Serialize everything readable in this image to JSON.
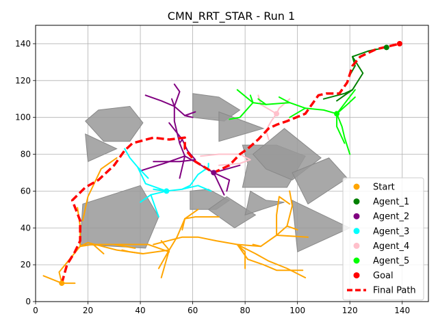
{
  "chart_data": {
    "type": "line",
    "title": "CMN_RRT_STAR - Run 1",
    "xlabel": "",
    "ylabel": "",
    "xlim": [
      0,
      150
    ],
    "ylim": [
      0,
      150
    ],
    "grid": true,
    "xticks": [
      0,
      20,
      40,
      60,
      80,
      100,
      120,
      140
    ],
    "yticks": [
      0,
      20,
      40,
      60,
      80,
      100,
      120,
      140
    ],
    "legend": {
      "placement": "bottom-right",
      "entries": [
        {
          "label": "Start",
          "color": "#ffa500",
          "marker": "dot"
        },
        {
          "label": "Agent_1",
          "color": "#008000",
          "marker": "dot"
        },
        {
          "label": "Agent_2",
          "color": "#800080",
          "marker": "dot"
        },
        {
          "label": "Agent_3",
          "color": "#00ffff",
          "marker": "dot"
        },
        {
          "label": "Agent_4",
          "color": "#ffc0cb",
          "marker": "dot"
        },
        {
          "label": "Agent_5",
          "color": "#00ff00",
          "marker": "dot"
        },
        {
          "label": "Goal",
          "color": "#ff0000",
          "marker": "dot"
        },
        {
          "label": "Final Path",
          "color": "#ff0000",
          "marker": "dash"
        }
      ]
    },
    "obstacle_color": "#999999",
    "obstacles": [
      [
        [
          19,
          98
        ],
        [
          24,
          104
        ],
        [
          36,
          106
        ],
        [
          41,
          97
        ],
        [
          36,
          87
        ],
        [
          26,
          87
        ]
      ],
      [
        [
          19,
          91
        ],
        [
          31,
          83
        ],
        [
          20,
          76
        ]
      ],
      [
        [
          60,
          113
        ],
        [
          70,
          111
        ],
        [
          78,
          104
        ],
        [
          72,
          98
        ],
        [
          60,
          100
        ]
      ],
      [
        [
          70,
          103
        ],
        [
          87,
          94
        ],
        [
          70,
          87
        ]
      ],
      [
        [
          18,
          53
        ],
        [
          40,
          63
        ],
        [
          47,
          46
        ],
        [
          42,
          29
        ],
        [
          17,
          31
        ]
      ],
      [
        [
          59,
          60
        ],
        [
          66,
          61
        ],
        [
          74,
          55
        ],
        [
          69,
          50
        ],
        [
          59,
          50
        ]
      ],
      [
        [
          66,
          50
        ],
        [
          76,
          40
        ],
        [
          84,
          47
        ],
        [
          73,
          57
        ]
      ],
      [
        [
          82,
          60
        ],
        [
          88,
          55
        ],
        [
          95,
          54
        ],
        [
          80,
          47
        ],
        [
          81,
          53
        ]
      ],
      [
        [
          79,
          85
        ],
        [
          81,
          75
        ],
        [
          79,
          62
        ],
        [
          96,
          62
        ],
        [
          103,
          79
        ],
        [
          92,
          85
        ]
      ],
      [
        [
          83,
          80
        ],
        [
          95,
          94
        ],
        [
          109,
          78
        ],
        [
          98,
          66
        ],
        [
          88,
          72
        ]
      ],
      [
        [
          98,
          70
        ],
        [
          112,
          78
        ],
        [
          119,
          67
        ],
        [
          104,
          53
        ]
      ],
      [
        [
          98,
          55
        ],
        [
          120,
          40
        ],
        [
          100,
          27
        ]
      ]
    ],
    "tree_color": "#ffa500",
    "tree_segments": [
      [
        [
          10,
          10
        ],
        [
          9,
          16
        ],
        [
          13,
          23
        ],
        [
          17,
          30
        ],
        [
          22,
          31
        ],
        [
          30,
          31
        ],
        [
          43,
          31
        ],
        [
          51,
          27
        ]
      ],
      [
        [
          10,
          10
        ],
        [
          3,
          14
        ]
      ],
      [
        [
          10,
          10
        ],
        [
          15,
          10
        ]
      ],
      [
        [
          13,
          23
        ],
        [
          12,
          21
        ]
      ],
      [
        [
          17,
          30
        ],
        [
          17,
          41
        ],
        [
          16,
          51
        ]
      ],
      [
        [
          17,
          30
        ],
        [
          20,
          32
        ],
        [
          31,
          28
        ],
        [
          41,
          26
        ],
        [
          51,
          28
        ],
        [
          48,
          33
        ]
      ],
      [
        [
          22,
          31
        ],
        [
          26,
          26
        ]
      ],
      [
        [
          30,
          31
        ],
        [
          38,
          29
        ]
      ],
      [
        [
          51,
          28
        ],
        [
          54,
          35
        ]
      ],
      [
        [
          51,
          28
        ],
        [
          47,
          18
        ]
      ],
      [
        [
          51,
          28
        ],
        [
          48,
          13
        ]
      ],
      [
        [
          45,
          31
        ],
        [
          56,
          35
        ],
        [
          62,
          35
        ],
        [
          69,
          33
        ],
        [
          77,
          31
        ],
        [
          86,
          30
        ],
        [
          92,
          36
        ],
        [
          96,
          41
        ],
        [
          98,
          52
        ],
        [
          97,
          60
        ]
      ],
      [
        [
          54,
          35
        ],
        [
          57,
          45
        ],
        [
          62,
          50
        ]
      ],
      [
        [
          57,
          45
        ],
        [
          56,
          39
        ]
      ],
      [
        [
          57,
          45
        ],
        [
          61,
          46
        ],
        [
          70,
          46
        ]
      ],
      [
        [
          77,
          31
        ],
        [
          80,
          27
        ],
        [
          80,
          18
        ]
      ],
      [
        [
          86,
          30
        ],
        [
          83,
          31
        ]
      ],
      [
        [
          92,
          36
        ],
        [
          104,
          35
        ]
      ],
      [
        [
          92,
          36
        ],
        [
          92,
          47
        ],
        [
          93,
          57
        ],
        [
          97,
          53
        ]
      ],
      [
        [
          96,
          41
        ],
        [
          100,
          39
        ]
      ],
      [
        [
          77,
          31
        ],
        [
          81,
          23
        ],
        [
          87,
          20
        ],
        [
          92,
          17
        ],
        [
          102,
          17
        ]
      ],
      [
        [
          77,
          31
        ],
        [
          84,
          26
        ],
        [
          89,
          22
        ],
        [
          96,
          18
        ],
        [
          103,
          13
        ]
      ],
      [
        [
          41,
          26
        ],
        [
          36,
          27
        ],
        [
          33,
          28
        ]
      ],
      [
        [
          18,
          44
        ],
        [
          20,
          57
        ],
        [
          25,
          72
        ],
        [
          31,
          78
        ]
      ]
    ],
    "agents": [
      {
        "name": "Agent_1",
        "color": "#008000",
        "node": [
          134,
          138
        ],
        "segments": [
          [
            [
              134,
              138
            ],
            [
              127,
              136
            ],
            [
              121,
              133
            ],
            [
              125,
              124
            ],
            [
              121,
              115
            ],
            [
              115,
              109
            ]
          ],
          [
            [
              121,
              133
            ],
            [
              122,
              128
            ],
            [
              120,
              123
            ]
          ],
          [
            [
              127,
              136
            ],
            [
              130,
              137
            ]
          ],
          [
            [
              121,
              115
            ],
            [
              118,
              113
            ],
            [
              110,
              110
            ]
          ]
        ]
      },
      {
        "name": "Agent_2",
        "color": "#800080",
        "node": [
          68,
          70
        ],
        "segments": [
          [
            [
              68,
              70
            ],
            [
              62,
              75
            ],
            [
              57,
              79
            ],
            [
              55,
              86
            ],
            [
              54,
              92
            ],
            [
              53,
              98
            ],
            [
              53,
              106
            ],
            [
              52,
              110
            ]
          ],
          [
            [
              55,
              86
            ],
            [
              56,
              88
            ],
            [
              51,
              97
            ]
          ],
          [
            [
              53,
              106
            ],
            [
              48,
              109
            ],
            [
              42,
              112
            ]
          ],
          [
            [
              53,
              106
            ],
            [
              57,
              101
            ],
            [
              60,
              100
            ]
          ],
          [
            [
              56,
              88
            ],
            [
              58,
              82
            ],
            [
              61,
              77
            ],
            [
              55,
              76
            ],
            [
              45,
              76
            ]
          ],
          [
            [
              57,
              79
            ],
            [
              49,
              75
            ],
            [
              40,
              71
            ]
          ],
          [
            [
              57,
              79
            ],
            [
              55,
              67
            ]
          ],
          [
            [
              68,
              70
            ],
            [
              74,
              66
            ],
            [
              73,
              60
            ]
          ],
          [
            [
              68,
              70
            ],
            [
              78,
              74
            ]
          ],
          [
            [
              68,
              70
            ],
            [
              72,
              58
            ]
          ],
          [
            [
              53,
              106
            ],
            [
              55,
              114
            ],
            [
              53,
              118
            ]
          ],
          [
            [
              57,
              101
            ],
            [
              61,
              103
            ]
          ]
        ]
      },
      {
        "name": "Agent_3",
        "color": "#00ffff",
        "node": [
          50,
          60
        ],
        "segments": [
          [
            [
              50,
              60
            ],
            [
              44,
              58
            ],
            [
              40,
              54
            ]
          ],
          [
            [
              44,
              58
            ],
            [
              46,
              50
            ],
            [
              47,
              46
            ]
          ],
          [
            [
              50,
              60
            ],
            [
              42,
              64
            ],
            [
              39,
              73
            ],
            [
              36,
              78
            ],
            [
              34,
              83
            ]
          ],
          [
            [
              50,
              60
            ],
            [
              56,
              61
            ],
            [
              59,
              63
            ],
            [
              62,
              69
            ],
            [
              66,
              73
            ],
            [
              66,
              75
            ]
          ],
          [
            [
              50,
              60
            ],
            [
              45,
              61
            ]
          ],
          [
            [
              56,
              61
            ],
            [
              62,
              63
            ],
            [
              67,
              60
            ]
          ],
          [
            [
              39,
              73
            ],
            [
              43,
              67
            ]
          ]
        ]
      },
      {
        "name": "Agent_4",
        "color": "#ffc0cb",
        "node": [
          92,
          102
        ],
        "segments": [
          [
            [
              92,
              102
            ],
            [
              90,
              98
            ],
            [
              88,
              93
            ],
            [
              89,
              88
            ]
          ],
          [
            [
              92,
              102
            ],
            [
              86,
              107
            ],
            [
              85,
              112
            ]
          ],
          [
            [
              92,
              102
            ],
            [
              93,
              105
            ],
            [
              97,
              110
            ]
          ],
          [
            [
              78,
              80
            ],
            [
              70,
              80
            ],
            [
              63,
              79
            ]
          ],
          [
            [
              78,
              80
            ],
            [
              82,
              77
            ],
            [
              78,
              75
            ],
            [
              70,
              74
            ]
          ]
        ]
      },
      {
        "name": "Agent_5",
        "color": "#00ff00",
        "node": [
          115,
          102
        ],
        "segments": [
          [
            [
              115,
              102
            ],
            [
              117,
              95
            ],
            [
              118,
              89
            ],
            [
              120,
              80
            ]
          ],
          [
            [
              115,
              102
            ],
            [
              110,
              104
            ],
            [
              103,
              105
            ],
            [
              97,
              108
            ],
            [
              88,
              107
            ],
            [
              83,
              108
            ]
          ],
          [
            [
              115,
              102
            ],
            [
              119,
              107
            ],
            [
              122,
              111
            ]
          ],
          [
            [
              115,
              102
            ],
            [
              115,
              95
            ],
            [
              118,
              86
            ]
          ],
          [
            [
              97,
              108
            ],
            [
              93,
              111
            ]
          ],
          [
            [
              88,
              107
            ],
            [
              85,
              110
            ]
          ],
          [
            [
              83,
              108
            ],
            [
              82,
              112
            ]
          ],
          [
            [
              103,
              105
            ],
            [
              97,
              100
            ]
          ],
          [
            [
              115,
              102
            ],
            [
              122,
              115
            ]
          ],
          [
            [
              83,
              108
            ],
            [
              77,
              115
            ]
          ],
          [
            [
              83,
              108
            ],
            [
              78,
              100
            ],
            [
              74,
              99
            ]
          ]
        ]
      }
    ],
    "start_point": [
      10,
      10
    ],
    "goal_point": [
      139,
      140
    ],
    "final_path": [
      [
        10,
        10
      ],
      [
        12,
        20
      ],
      [
        15,
        27
      ],
      [
        17,
        33
      ],
      [
        17,
        44
      ],
      [
        14,
        55
      ],
      [
        19,
        62
      ],
      [
        24,
        66
      ],
      [
        30,
        74
      ],
      [
        34,
        82
      ],
      [
        37,
        86
      ],
      [
        45,
        89
      ],
      [
        51,
        88
      ],
      [
        57,
        89
      ],
      [
        57,
        83
      ],
      [
        61,
        76
      ],
      [
        68,
        70
      ],
      [
        74,
        74
      ],
      [
        78,
        80
      ],
      [
        81,
        83
      ],
      [
        85,
        88
      ],
      [
        89,
        94
      ],
      [
        92,
        96
      ],
      [
        96,
        98
      ],
      [
        103,
        102
      ],
      [
        108,
        112
      ],
      [
        111,
        113
      ],
      [
        116,
        113
      ],
      [
        119,
        119
      ],
      [
        121,
        128
      ],
      [
        124,
        133
      ],
      [
        130,
        137
      ],
      [
        139,
        140
      ]
    ]
  }
}
